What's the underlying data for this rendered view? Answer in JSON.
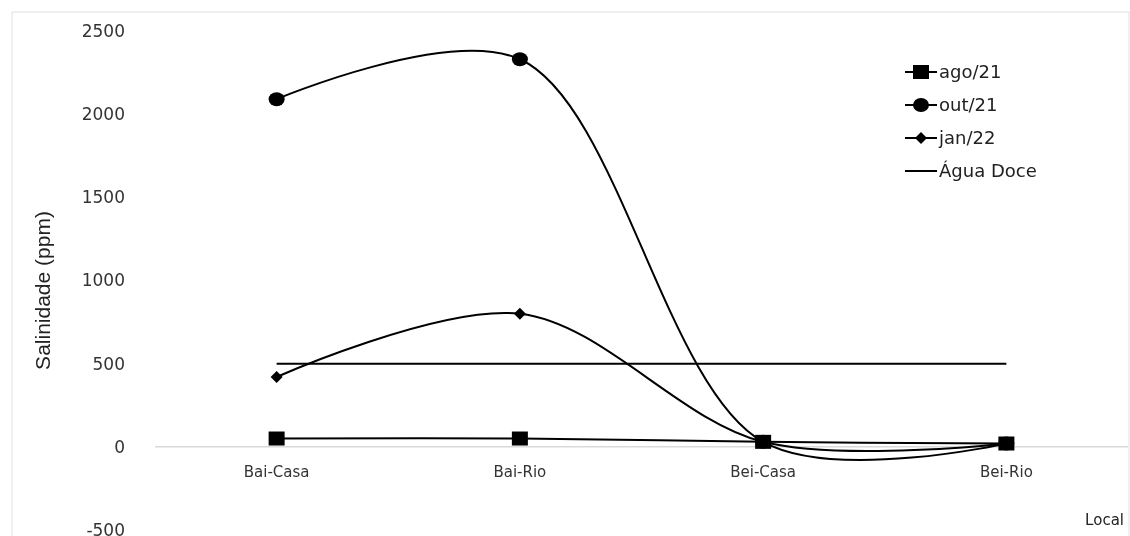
{
  "chart_data": {
    "type": "line",
    "xlabel": "Local",
    "ylabel": "Salinidade (ppm)",
    "categories": [
      "Bai-Casa",
      "Bai-Rio",
      "Bei-Casa",
      "Bei-Rio"
    ],
    "series": [
      {
        "name": "ago/21",
        "color": "#000000",
        "marker": "square",
        "values": [
          50,
          50,
          30,
          20
        ]
      },
      {
        "name": "out/21",
        "color": "#000000",
        "marker": "circle",
        "values": [
          2090,
          2330,
          30,
          20
        ]
      },
      {
        "name": "jan/22",
        "color": "#000000",
        "marker": "diamond",
        "values": [
          420,
          800,
          30,
          20
        ]
      },
      {
        "name": "Água Doce",
        "color": "#000000",
        "marker": "none",
        "values": [
          500,
          500,
          500,
          500
        ]
      }
    ],
    "ylim": [
      -500,
      2500
    ],
    "yticks": [
      -500,
      0,
      500,
      1000,
      1500,
      2000,
      2500
    ],
    "grid": false,
    "legend": "top right"
  }
}
